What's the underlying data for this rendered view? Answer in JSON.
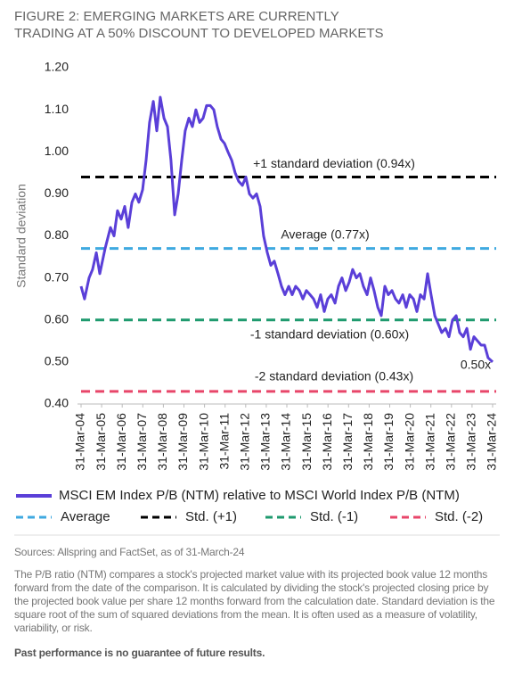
{
  "chart_data": {
    "type": "line",
    "title": "FIGURE 2: EMERGING MARKETS ARE CURRENTLY TRADING AT A 50% DISCOUNT TO DEVELOPED MARKETS",
    "y_label": "Standard deviation",
    "xlim": [
      2004.25,
      2024.25
    ],
    "xticks": [
      {
        "value": 2004.25,
        "label": "31-Mar-04"
      },
      {
        "value": 2005.25,
        "label": "31-Mar-05"
      },
      {
        "value": 2006.25,
        "label": "31-Mar-06"
      },
      {
        "value": 2007.25,
        "label": "31-Mar-07"
      },
      {
        "value": 2008.25,
        "label": "31-Mar-08"
      },
      {
        "value": 2009.25,
        "label": "31-Mar-09"
      },
      {
        "value": 2010.25,
        "label": "31-Mar-10"
      },
      {
        "value": 2011.25,
        "label": "31-Mar-11"
      },
      {
        "value": 2012.25,
        "label": "31-Mar-12"
      },
      {
        "value": 2013.25,
        "label": "31-Mar-13"
      },
      {
        "value": 2014.25,
        "label": "31-Mar-14"
      },
      {
        "value": 2015.25,
        "label": "31-Mar-15"
      },
      {
        "value": 2016.25,
        "label": "31-Mar-16"
      },
      {
        "value": 2017.25,
        "label": "31-Mar-17"
      },
      {
        "value": 2018.25,
        "label": "31-Mar-18"
      },
      {
        "value": 2019.25,
        "label": "31-Mar-19"
      },
      {
        "value": 2020.25,
        "label": "31-Mar-20"
      },
      {
        "value": 2021.25,
        "label": "31-Mar-21"
      },
      {
        "value": 2022.25,
        "label": "31-Mar-22"
      },
      {
        "value": 2023.25,
        "label": "31-Mar-23"
      },
      {
        "value": 2024.25,
        "label": "31-Mar-24"
      }
    ],
    "ylim": [
      0.4,
      1.2
    ],
    "yticks": [
      {
        "value": 0.4,
        "label": "0.40"
      },
      {
        "value": 0.5,
        "label": "0.50"
      },
      {
        "value": 0.6,
        "label": "0.60"
      },
      {
        "value": 0.7,
        "label": "0.70"
      },
      {
        "value": 0.8,
        "label": "0.80"
      },
      {
        "value": 0.9,
        "label": "0.90"
      },
      {
        "value": 1.0,
        "label": "1.00"
      },
      {
        "value": 1.1,
        "label": "1.10"
      },
      {
        "value": 1.2,
        "label": "1.20"
      }
    ],
    "series": [
      {
        "name": "MSCI EM Index P/B (NTM) relative to MSCI World Index P/B (NTM)",
        "color": "#5a3fd8",
        "x": [
          2004.25,
          2004.42,
          2004.64,
          2004.81,
          2004.99,
          2005.16,
          2005.42,
          2005.68,
          2005.85,
          2006.02,
          2006.2,
          2006.37,
          2006.54,
          2006.72,
          2006.89,
          2007.06,
          2007.24,
          2007.41,
          2007.58,
          2007.76,
          2007.93,
          2008.1,
          2008.28,
          2008.45,
          2008.62,
          2008.8,
          2008.97,
          2009.14,
          2009.31,
          2009.49,
          2009.66,
          2009.83,
          2010.01,
          2010.18,
          2010.35,
          2010.53,
          2010.7,
          2010.87,
          2011.05,
          2011.22,
          2011.39,
          2011.57,
          2011.74,
          2011.91,
          2012.09,
          2012.26,
          2012.43,
          2012.6,
          2012.78,
          2012.95,
          2013.12,
          2013.3,
          2013.47,
          2013.64,
          2013.82,
          2013.99,
          2014.16,
          2014.34,
          2014.51,
          2014.68,
          2014.86,
          2015.03,
          2015.2,
          2015.38,
          2015.55,
          2015.72,
          2015.89,
          2016.07,
          2016.24,
          2016.41,
          2016.59,
          2016.76,
          2016.93,
          2017.11,
          2017.28,
          2017.45,
          2017.63,
          2017.8,
          2017.97,
          2018.15,
          2018.32,
          2018.49,
          2018.67,
          2018.84,
          2019.01,
          2019.18,
          2019.36,
          2019.53,
          2019.7,
          2019.88,
          2020.05,
          2020.22,
          2020.4,
          2020.57,
          2020.74,
          2020.92,
          2021.09,
          2021.26,
          2021.44,
          2021.61,
          2021.78,
          2021.96,
          2022.13,
          2022.3,
          2022.48,
          2022.65,
          2022.82,
          2023.0,
          2023.17,
          2023.34,
          2023.52,
          2023.69,
          2023.86,
          2024.03,
          2024.25
        ],
        "values": [
          0.68,
          0.65,
          0.7,
          0.72,
          0.76,
          0.71,
          0.77,
          0.82,
          0.8,
          0.86,
          0.84,
          0.87,
          0.82,
          0.88,
          0.9,
          0.88,
          0.91,
          0.98,
          1.07,
          1.12,
          1.05,
          1.13,
          1.08,
          1.06,
          0.98,
          0.85,
          0.9,
          0.98,
          1.05,
          1.08,
          1.06,
          1.1,
          1.07,
          1.08,
          1.11,
          1.11,
          1.1,
          1.06,
          1.03,
          1.02,
          1.0,
          0.98,
          0.95,
          0.93,
          0.92,
          0.94,
          0.9,
          0.89,
          0.9,
          0.87,
          0.8,
          0.76,
          0.73,
          0.74,
          0.71,
          0.68,
          0.66,
          0.68,
          0.66,
          0.68,
          0.67,
          0.65,
          0.67,
          0.66,
          0.65,
          0.63,
          0.66,
          0.62,
          0.65,
          0.66,
          0.64,
          0.68,
          0.7,
          0.67,
          0.69,
          0.72,
          0.7,
          0.71,
          0.68,
          0.66,
          0.7,
          0.67,
          0.63,
          0.61,
          0.68,
          0.66,
          0.67,
          0.65,
          0.64,
          0.66,
          0.63,
          0.66,
          0.65,
          0.62,
          0.66,
          0.65,
          0.71,
          0.66,
          0.61,
          0.59,
          0.57,
          0.58,
          0.56,
          0.6,
          0.61,
          0.57,
          0.56,
          0.58,
          0.53,
          0.56,
          0.55,
          0.54,
          0.54,
          0.51,
          0.5
        ]
      }
    ],
    "end_label": "0.50x",
    "reference_lines": [
      {
        "name": "Average",
        "label": "Average  (0.77x)",
        "value": 0.77,
        "color": "#3fa9e0"
      },
      {
        "name": "Std. (+1)",
        "label": "+1 standard deviation (0.94x)",
        "value": 0.94,
        "color": "#000000"
      },
      {
        "name": "Std. (-1)",
        "label": "-1 standard deviation (0.60x)",
        "value": 0.6,
        "color": "#1e9a6e"
      },
      {
        "name": "Std. (-2)",
        "label": "-2 standard deviation (0.43x)",
        "value": 0.43,
        "color": "#e8466a"
      }
    ],
    "source": "Sources: Allspring and FactSet, as of 31-March-24",
    "note": "The P/B ratio (NTM) compares a stock's projected market value with its projected book value 12 months forward from the date of the comparison. It is calculated by dividing the stock's projected closing price by the projected book value per share 12 months forward from the calculation date. Standard deviation is the square root of the sum of squared deviations from the mean. It is often used as a measure of volatility, variability, or risk.",
    "disclaimer": "Past performance is no guarantee of future results."
  }
}
